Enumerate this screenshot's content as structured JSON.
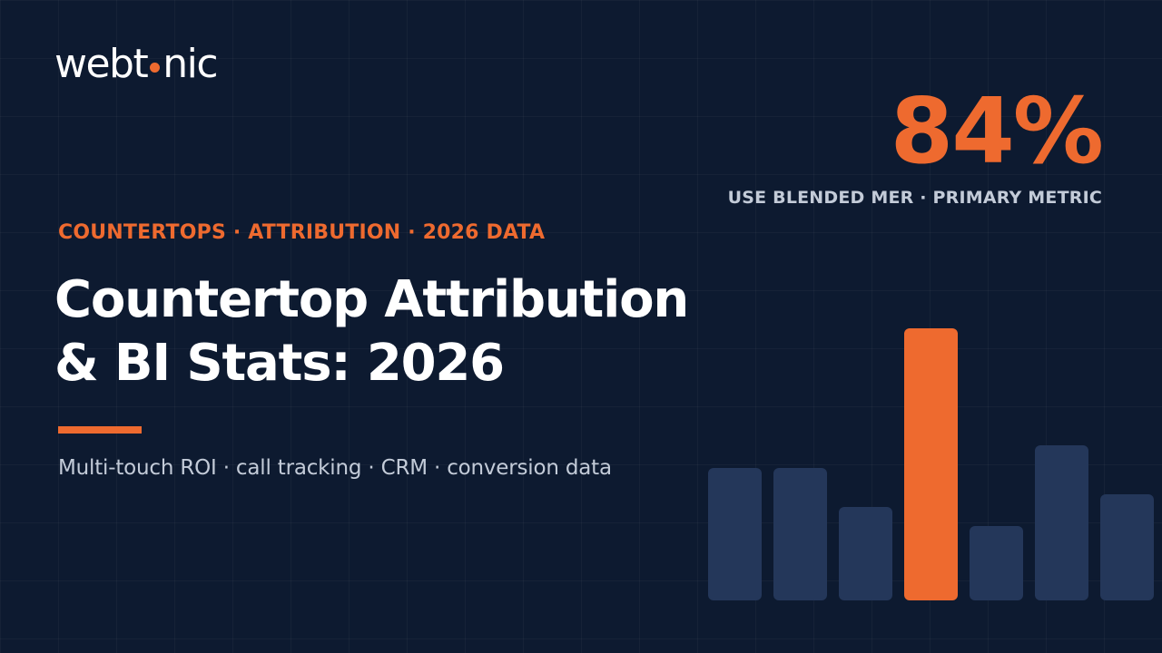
{
  "logo": {
    "text_before_dot": "webt",
    "text_after_dot": "nic",
    "dot_color": "#ee6a2f"
  },
  "kpi": {
    "value": "84%",
    "label": "USE BLENDED MER · PRIMARY METRIC"
  },
  "eyebrow": "COUNTERTOPS · ATTRIBUTION · 2026 DATA",
  "title": {
    "line1": "Countertop Attribution",
    "line2": "& BI Stats: 2026"
  },
  "subtitle": "Multi-touch ROI · call tracking · CRM · conversion data",
  "colors": {
    "background": "#0d1a30",
    "accent": "#ee6a2f",
    "bar": "#24375a",
    "muted_text": "#c3cbd8"
  },
  "chart_data": {
    "type": "bar",
    "values": [
      146,
      146,
      103,
      300,
      82,
      171,
      117
    ],
    "highlight_index": 3,
    "ylim": [
      0,
      300
    ],
    "grid": false,
    "legend": "none"
  }
}
